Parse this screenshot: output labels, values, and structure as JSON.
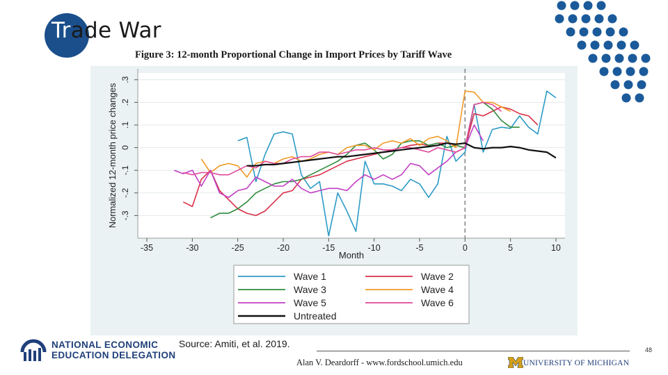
{
  "slide": {
    "title_pre": "Tr",
    "title_post": "ade War",
    "source": "Source:  Amiti, et al. 2019.",
    "page_number": "48",
    "credit": "Alan V. Deardorff - www.fordschool.umich.edu",
    "university": "UNIVERSITY OF MICHIGAN",
    "org_line1": "NATIONAL ECONOMIC",
    "org_line2": "EDUCATION DELEGATION"
  },
  "colors": {
    "title_circle": "#1b4f8c",
    "accent_dots": "#1b5a9a",
    "plot_bg": "#eaf2f3",
    "chart_bg": "#ffffff",
    "org_blue": "#1f3f7a",
    "um_maize": "#d4a017"
  },
  "chart_data": {
    "type": "line",
    "title": "Figure 3: 12-month Proportional Change in Import Prices by Tariff Wave",
    "xlabel": "Month",
    "ylabel": "Normalized 12-month price changes",
    "xlim": [
      -36,
      11
    ],
    "ylim": [
      -0.4,
      0.33
    ],
    "xticks": [
      -35,
      -30,
      -25,
      -20,
      -15,
      -10,
      -5,
      0,
      5,
      10
    ],
    "yticks": [
      -0.3,
      -0.2,
      -0.1,
      0,
      0.1,
      0.2,
      0.3
    ],
    "ytick_labels": [
      "-.3",
      "-.2",
      "-.1",
      "0",
      ".1",
      ".2",
      ".3"
    ],
    "event_line_x": 0,
    "legend_position": "bottom",
    "series": [
      {
        "name": "Wave 1",
        "color": "#2c9ac5",
        "x": [
          -25,
          -24,
          -23,
          -22,
          -21,
          -20,
          -19,
          -18,
          -17,
          -16,
          -15,
          -14,
          -13,
          -12,
          -11,
          -10,
          -9,
          -8,
          -7,
          -6,
          -5,
          -4,
          -3,
          -2,
          -1,
          0,
          1,
          2,
          3,
          4,
          5,
          6,
          7,
          8,
          9,
          10
        ],
        "y": [
          0.03,
          0.045,
          -0.15,
          -0.03,
          0.06,
          0.07,
          0.06,
          -0.12,
          -0.18,
          -0.15,
          -0.39,
          -0.2,
          -0.28,
          -0.37,
          -0.06,
          -0.16,
          -0.16,
          -0.17,
          -0.19,
          -0.14,
          -0.16,
          -0.22,
          -0.16,
          0.05,
          -0.06,
          -0.02,
          0.19,
          -0.02,
          0.08,
          0.09,
          0.085,
          0.14,
          0.09,
          0.06,
          0.25,
          0.22
        ]
      },
      {
        "name": "Wave 2",
        "color": "#d92f48",
        "x": [
          -31,
          -30,
          -29,
          -28,
          -27,
          -26,
          -25,
          -24,
          -23,
          -22,
          -21,
          -20,
          -19,
          -18,
          -17,
          -16,
          -15,
          -14,
          -13,
          -12,
          -11,
          -10,
          -9,
          -8,
          -7,
          -6,
          -5,
          -4,
          -3,
          -2,
          -1,
          0,
          1,
          2,
          3,
          4,
          5,
          6,
          7,
          8
        ],
        "y": [
          -0.24,
          -0.26,
          -0.14,
          -0.1,
          -0.19,
          -0.23,
          -0.27,
          -0.29,
          -0.3,
          -0.28,
          -0.24,
          -0.2,
          -0.19,
          -0.14,
          -0.13,
          -0.12,
          -0.1,
          -0.08,
          -0.06,
          -0.05,
          -0.04,
          -0.03,
          -0.02,
          -0.01,
          0.0,
          0.01,
          0.015,
          0.01,
          0.02,
          0.02,
          0.01,
          0.0,
          0.15,
          0.14,
          0.16,
          0.18,
          0.17,
          0.15,
          0.14,
          0.1
        ]
      },
      {
        "name": "Wave 3",
        "color": "#2f8b3c",
        "x": [
          -28,
          -27,
          -26,
          -25,
          -24,
          -23,
          -22,
          -21,
          -20,
          -19,
          -18,
          -17,
          -16,
          -15,
          -14,
          -13,
          -12,
          -11,
          -10,
          -9,
          -8,
          -7,
          -6,
          -5,
          -4,
          -3,
          -2,
          -1,
          0,
          1,
          2,
          3,
          4,
          5,
          6
        ],
        "y": [
          -0.31,
          -0.29,
          -0.29,
          -0.27,
          -0.24,
          -0.2,
          -0.18,
          -0.16,
          -0.15,
          -0.15,
          -0.14,
          -0.12,
          -0.1,
          -0.08,
          -0.06,
          -0.03,
          0.01,
          0.02,
          -0.01,
          -0.05,
          -0.03,
          0.02,
          0.03,
          0.03,
          0.01,
          0.02,
          0.0,
          0.01,
          0.0,
          0.19,
          0.2,
          0.17,
          0.12,
          0.09,
          0.09
        ]
      },
      {
        "name": "Wave 4",
        "color": "#f39a26",
        "x": [
          -29,
          -28,
          -27,
          -26,
          -25,
          -24,
          -23,
          -22,
          -21,
          -20,
          -19,
          -18,
          -17,
          -16,
          -15,
          -14,
          -13,
          -12,
          -11,
          -10,
          -9,
          -8,
          -7,
          -6,
          -5,
          -4,
          -3,
          -2,
          -1,
          0,
          1,
          2,
          3,
          4,
          5
        ],
        "y": [
          -0.05,
          -0.11,
          -0.08,
          -0.07,
          -0.08,
          -0.13,
          -0.07,
          -0.06,
          -0.07,
          -0.05,
          -0.04,
          -0.06,
          -0.05,
          -0.03,
          -0.02,
          -0.03,
          0.0,
          0.01,
          0.01,
          -0.01,
          0.02,
          0.03,
          0.02,
          0.04,
          0.01,
          0.04,
          0.05,
          0.03,
          0.0,
          0.25,
          0.245,
          0.2,
          0.2,
          0.18,
          0.16
        ]
      },
      {
        "name": "Wave 5",
        "color": "#c13fc4",
        "x": [
          -32,
          -31,
          -30,
          -29,
          -28,
          -27,
          -26,
          -25,
          -24,
          -23,
          -22,
          -21,
          -20,
          -19,
          -18,
          -17,
          -16,
          -15,
          -14,
          -13,
          -12,
          -11,
          -10,
          -9,
          -8,
          -7,
          -6,
          -5,
          -4,
          -3,
          -2,
          -1,
          0,
          1,
          2
        ],
        "y": [
          -0.1,
          -0.115,
          -0.1,
          -0.17,
          -0.1,
          -0.2,
          -0.22,
          -0.19,
          -0.18,
          -0.13,
          -0.15,
          -0.17,
          -0.17,
          -0.14,
          -0.18,
          -0.2,
          -0.19,
          -0.18,
          -0.18,
          -0.19,
          -0.15,
          -0.12,
          -0.14,
          -0.12,
          -0.14,
          -0.12,
          -0.07,
          -0.08,
          -0.12,
          -0.09,
          -0.06,
          -0.02,
          0.0,
          0.1,
          0.03
        ]
      },
      {
        "name": "Wave 6",
        "color": "#e0489a",
        "x": [
          -31,
          -30,
          -29,
          -28,
          -27,
          -26,
          -25,
          -24,
          -23,
          -22,
          -21,
          -20,
          -19,
          -18,
          -17,
          -16,
          -15,
          -14,
          -13,
          -12,
          -11,
          -10,
          -9,
          -8,
          -7,
          -6,
          -5,
          -4,
          -3,
          -2,
          -1,
          0,
          1,
          2,
          3,
          4
        ],
        "y": [
          -0.11,
          -0.12,
          -0.11,
          -0.11,
          -0.12,
          -0.12,
          -0.1,
          -0.08,
          -0.09,
          -0.06,
          -0.07,
          -0.07,
          -0.05,
          -0.04,
          -0.04,
          -0.02,
          -0.02,
          -0.03,
          -0.02,
          -0.01,
          -0.01,
          0.0,
          -0.01,
          -0.01,
          0.0,
          0.0,
          -0.01,
          -0.02,
          0.0,
          -0.01,
          -0.02,
          0.0,
          0.19,
          0.2,
          0.19,
          0.16
        ]
      },
      {
        "name": "Untreated",
        "color": "#111111",
        "x": [
          -24,
          -23,
          -22,
          -21,
          -20,
          -19,
          -18,
          -17,
          -16,
          -15,
          -14,
          -13,
          -12,
          -11,
          -10,
          -9,
          -8,
          -7,
          -6,
          -5,
          -4,
          -3,
          -2,
          -1,
          0,
          1,
          2,
          3,
          4,
          5,
          6,
          7,
          8,
          9,
          10
        ],
        "y": [
          -0.08,
          -0.08,
          -0.075,
          -0.075,
          -0.07,
          -0.065,
          -0.06,
          -0.055,
          -0.05,
          -0.045,
          -0.04,
          -0.04,
          -0.035,
          -0.03,
          -0.025,
          -0.02,
          -0.015,
          -0.01,
          -0.005,
          0.0,
          0.005,
          0.01,
          0.02,
          0.015,
          0.02,
          0.0,
          -0.005,
          0.0,
          0.0,
          0.005,
          0.0,
          -0.01,
          -0.015,
          -0.02,
          -0.045
        ]
      }
    ]
  }
}
